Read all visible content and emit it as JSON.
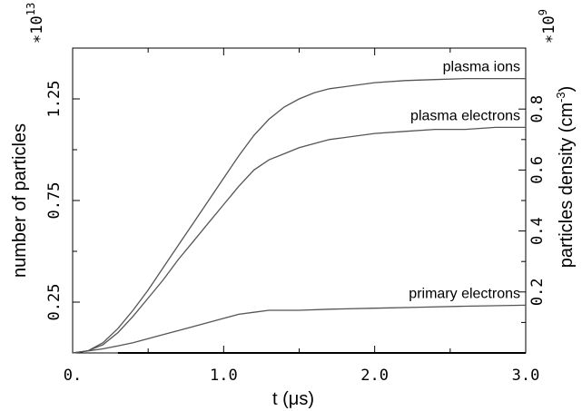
{
  "chart_data": {
    "type": "line",
    "xlabel": "t (μs)",
    "x_ticks": [
      "0.",
      "1.0",
      "2.0",
      "3.0"
    ],
    "xlim": [
      0,
      3
    ],
    "ylabel_left": "number of particles",
    "left_multiplier": "∗10",
    "left_multiplier_exp": "13",
    "left_ticks": [
      "0.25",
      "0.75",
      "1.25"
    ],
    "ylim_left": [
      0,
      1.5
    ],
    "ylabel_right": "particles density (cm",
    "ylabel_right_exp": "-3",
    "ylabel_right_close": ")",
    "right_multiplier": "∗10",
    "right_multiplier_exp": "9",
    "right_ticks": [
      "0.2",
      "0.4",
      "0.6",
      "0.8"
    ],
    "ylim_right": [
      0,
      1.0
    ],
    "grid": false,
    "series": [
      {
        "name": "plasma ions",
        "color": "#555555",
        "x": [
          0,
          0.1,
          0.2,
          0.3,
          0.4,
          0.5,
          0.6,
          0.7,
          0.8,
          0.9,
          1.0,
          1.1,
          1.2,
          1.3,
          1.4,
          1.5,
          1.6,
          1.7,
          1.8,
          2.0,
          2.2,
          2.4,
          2.6,
          2.8,
          3.0
        ],
        "y": [
          0,
          0.01,
          0.05,
          0.12,
          0.21,
          0.31,
          0.42,
          0.53,
          0.64,
          0.75,
          0.86,
          0.97,
          1.07,
          1.15,
          1.21,
          1.25,
          1.28,
          1.3,
          1.31,
          1.33,
          1.34,
          1.345,
          1.35,
          1.35,
          1.35
        ]
      },
      {
        "name": "plasma electrons",
        "color": "#555555",
        "x": [
          0,
          0.1,
          0.2,
          0.3,
          0.4,
          0.5,
          0.6,
          0.7,
          0.8,
          0.9,
          1.0,
          1.1,
          1.2,
          1.3,
          1.4,
          1.5,
          1.6,
          1.7,
          1.8,
          2.0,
          2.2,
          2.4,
          2.6,
          2.8,
          3.0
        ],
        "y": [
          0,
          0.01,
          0.04,
          0.1,
          0.18,
          0.27,
          0.36,
          0.46,
          0.55,
          0.64,
          0.73,
          0.82,
          0.9,
          0.95,
          0.98,
          1.01,
          1.03,
          1.05,
          1.06,
          1.08,
          1.09,
          1.1,
          1.1,
          1.11,
          1.11
        ]
      },
      {
        "name": "primary electrons",
        "color": "#555555",
        "x": [
          0,
          0.1,
          0.2,
          0.3,
          0.4,
          0.5,
          0.6,
          0.7,
          0.8,
          0.9,
          1.0,
          1.1,
          1.2,
          1.3,
          1.5,
          1.7,
          2.0,
          2.3,
          2.6,
          3.0
        ],
        "y": [
          0,
          0.01,
          0.02,
          0.035,
          0.05,
          0.07,
          0.09,
          0.11,
          0.13,
          0.15,
          0.17,
          0.19,
          0.2,
          0.21,
          0.21,
          0.215,
          0.22,
          0.225,
          0.23,
          0.235
        ]
      },
      {
        "name": "",
        "color": "#000000",
        "x": [
          0.3,
          3.0
        ],
        "y": [
          0,
          0
        ]
      }
    ]
  }
}
